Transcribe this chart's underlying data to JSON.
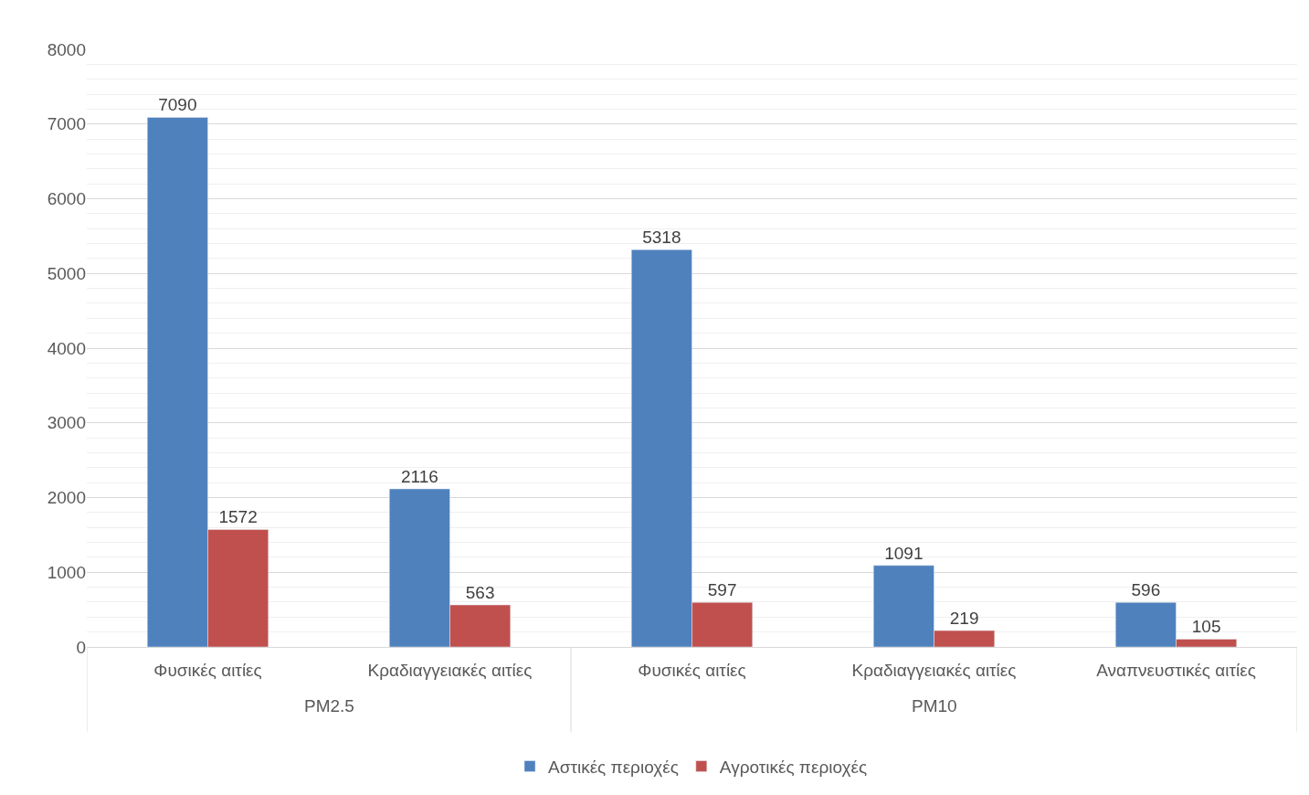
{
  "chart_data": {
    "type": "bar",
    "categories": [
      "Φυσικές αιτίες",
      "Κραδιαγγειακές αιτίες",
      "Φυσικές αιτίες",
      "Κραδιαγγειακές αιτίες",
      "Αναπνευστικές αιτίες"
    ],
    "series": [
      {
        "name": "Αστικές περιοχές",
        "color": "#4f81bd",
        "values": [
          7090,
          2116,
          5318,
          1091,
          596
        ]
      },
      {
        "name": "Αγροτικές περιοχές",
        "color": "#c0504d",
        "values": [
          1572,
          563,
          597,
          219,
          105
        ]
      }
    ],
    "annotations": [
      "PM2.5",
      "PM10"
    ],
    "ylim": [
      0,
      8000
    ],
    "yticks": [
      0,
      1000,
      2000,
      3000,
      4000,
      5000,
      6000,
      7000,
      8000
    ],
    "grid": true,
    "legend": "bottom",
    "data_labels": true
  }
}
